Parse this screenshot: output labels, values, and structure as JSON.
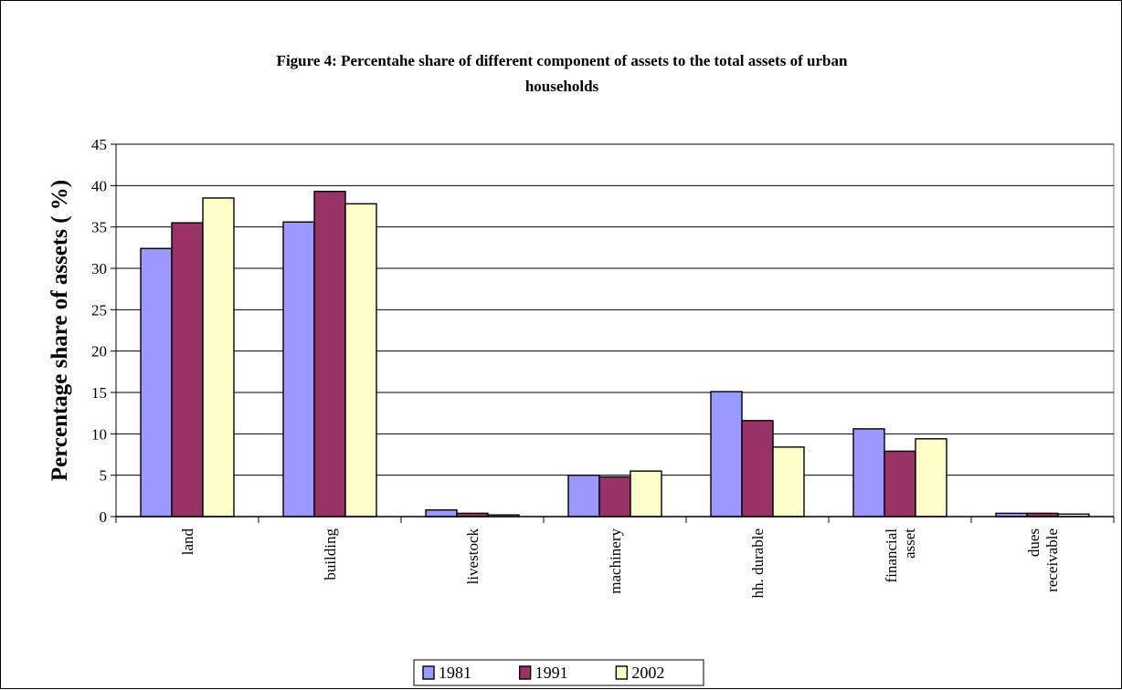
{
  "chart_data": {
    "type": "bar",
    "title_lines": [
      "Figure 4: Percentahe share of different component of assets to the total assets of urban",
      "households"
    ],
    "ylabel": "Percentage share of assets ( %)",
    "xlabel": "",
    "ylim": [
      0,
      45
    ],
    "yticks": [
      0,
      5,
      10,
      15,
      20,
      25,
      30,
      35,
      40,
      45
    ],
    "grid": true,
    "legend_position": "bottom",
    "categories": [
      [
        "land"
      ],
      [
        "building"
      ],
      [
        "livestock"
      ],
      [
        "machinery"
      ],
      [
        "hh. durable"
      ],
      [
        "financial",
        "asset"
      ],
      [
        "dues",
        "receivable"
      ]
    ],
    "series": [
      {
        "name": "1981",
        "color": "#9999ff",
        "values": [
          32.4,
          35.6,
          0.8,
          5.0,
          15.1,
          10.6,
          0.4
        ]
      },
      {
        "name": "1991",
        "color": "#993366",
        "values": [
          35.5,
          39.3,
          0.4,
          4.8,
          11.6,
          7.9,
          0.4
        ]
      },
      {
        "name": "2002",
        "color": "#ffffcc",
        "values": [
          38.5,
          37.8,
          0.2,
          5.5,
          8.4,
          9.4,
          0.3
        ]
      }
    ]
  }
}
